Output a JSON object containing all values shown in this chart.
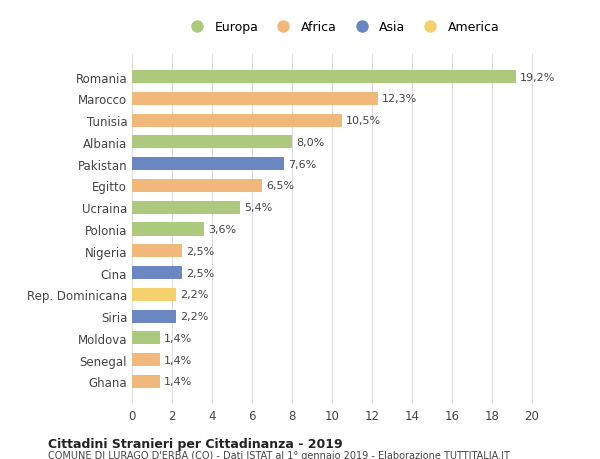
{
  "categories": [
    "Romania",
    "Marocco",
    "Tunisia",
    "Albania",
    "Pakistan",
    "Egitto",
    "Ucraina",
    "Polonia",
    "Nigeria",
    "Cina",
    "Rep. Dominicana",
    "Siria",
    "Moldova",
    "Senegal",
    "Ghana"
  ],
  "values": [
    19.2,
    12.3,
    10.5,
    8.0,
    7.6,
    6.5,
    5.4,
    3.6,
    2.5,
    2.5,
    2.2,
    2.2,
    1.4,
    1.4,
    1.4
  ],
  "labels": [
    "19,2%",
    "12,3%",
    "10,5%",
    "8,0%",
    "7,6%",
    "6,5%",
    "5,4%",
    "3,6%",
    "2,5%",
    "2,5%",
    "2,2%",
    "2,2%",
    "1,4%",
    "1,4%",
    "1,4%"
  ],
  "colors": [
    "#adc97e",
    "#f0b87a",
    "#f0b87a",
    "#adc97e",
    "#6b86c0",
    "#f0b87a",
    "#adc97e",
    "#adc97e",
    "#f0b87a",
    "#6b86c0",
    "#f5d06e",
    "#6b86c0",
    "#adc97e",
    "#f0b87a",
    "#f0b87a"
  ],
  "legend": [
    {
      "label": "Europa",
      "color": "#adc97e"
    },
    {
      "label": "Africa",
      "color": "#f0b87a"
    },
    {
      "label": "Asia",
      "color": "#6b86c0"
    },
    {
      "label": "America",
      "color": "#f5d06e"
    }
  ],
  "xlim": [
    0,
    21
  ],
  "xticks": [
    0,
    2,
    4,
    6,
    8,
    10,
    12,
    14,
    16,
    18,
    20
  ],
  "title": "Cittadini Stranieri per Cittadinanza - 2019",
  "subtitle": "COMUNE DI LURAGO D'ERBA (CO) - Dati ISTAT al 1° gennaio 2019 - Elaborazione TUTTITALIA.IT",
  "background_color": "#ffffff",
  "grid_color": "#dddddd"
}
